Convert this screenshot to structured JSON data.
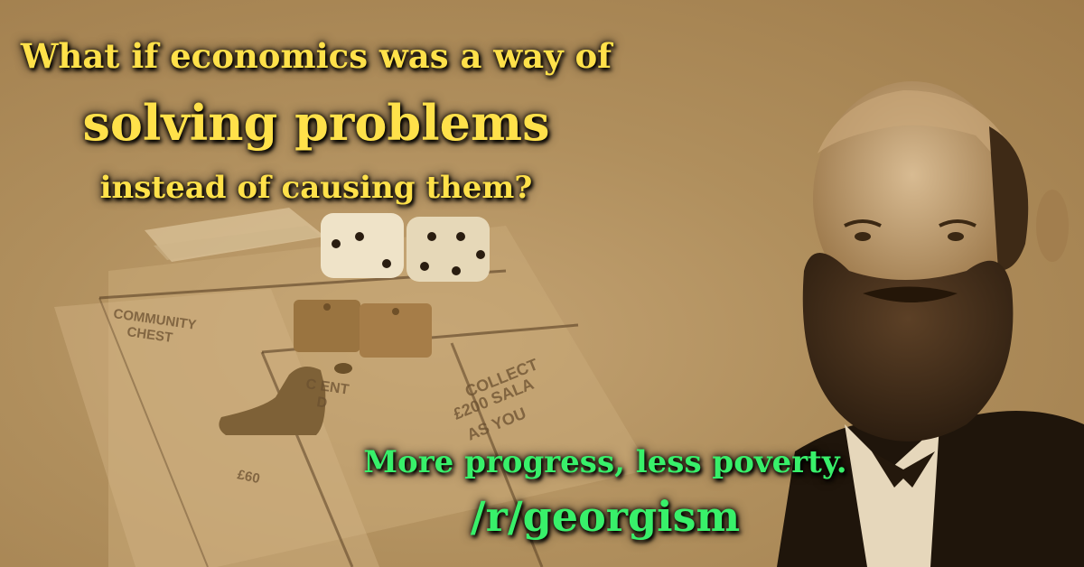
{
  "headline": {
    "line1": "What if economics was a way of",
    "line2": "solving problems",
    "line3": "instead of causing them?"
  },
  "tagline": "More progress, less poverty.",
  "subreddit": "/r/georgism",
  "board_labels": {
    "community_chest_1": "COMMUNITY",
    "community_chest_2": "CHEST",
    "collect_1": "COLLECT",
    "collect_2": "£200 SALA",
    "collect_3": "AS YOU",
    "current_1": "C    ENT",
    "current_2": "D",
    "price": "£60"
  },
  "colors": {
    "headline": "#ffe14a",
    "tagline": "#38f06a",
    "background": "#b08c5a"
  }
}
